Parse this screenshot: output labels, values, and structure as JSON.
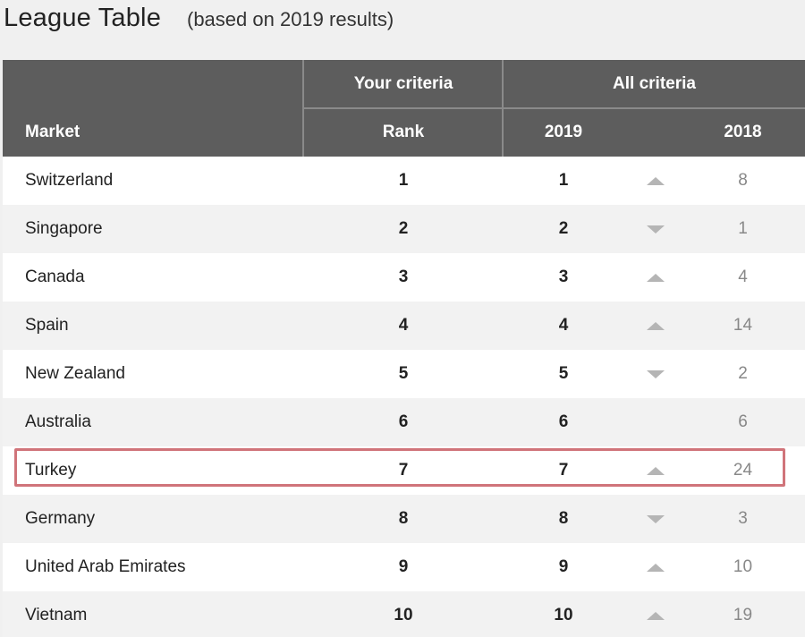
{
  "title": {
    "main": "League Table",
    "sub": "(based on 2019 results)"
  },
  "header": {
    "group_your": "Your criteria",
    "group_all": "All criteria",
    "col_market": "Market",
    "col_rank": "Rank",
    "col_2019": "2019",
    "col_2018": "2018"
  },
  "colors": {
    "header_bg": "#5d5d5d",
    "highlight": "#d0747a",
    "arrow": "#b5b5b5"
  },
  "rows": [
    {
      "market": "Switzerland",
      "rank": "1",
      "y2019": "1",
      "trend": "up",
      "y2018": "8"
    },
    {
      "market": "Singapore",
      "rank": "2",
      "y2019": "2",
      "trend": "down",
      "y2018": "1"
    },
    {
      "market": "Canada",
      "rank": "3",
      "y2019": "3",
      "trend": "up",
      "y2018": "4"
    },
    {
      "market": "Spain",
      "rank": "4",
      "y2019": "4",
      "trend": "up",
      "y2018": "14"
    },
    {
      "market": "New Zealand",
      "rank": "5",
      "y2019": "5",
      "trend": "down",
      "y2018": "2"
    },
    {
      "market": "Australia",
      "rank": "6",
      "y2019": "6",
      "trend": "none",
      "y2018": "6"
    },
    {
      "market": "Turkey",
      "rank": "7",
      "y2019": "7",
      "trend": "up",
      "y2018": "24",
      "highlighted": true
    },
    {
      "market": "Germany",
      "rank": "8",
      "y2019": "8",
      "trend": "down",
      "y2018": "3"
    },
    {
      "market": "United Arab Emirates",
      "rank": "9",
      "y2019": "9",
      "trend": "up",
      "y2018": "10"
    },
    {
      "market": "Vietnam",
      "rank": "10",
      "y2019": "10",
      "trend": "up",
      "y2018": "19"
    }
  ]
}
